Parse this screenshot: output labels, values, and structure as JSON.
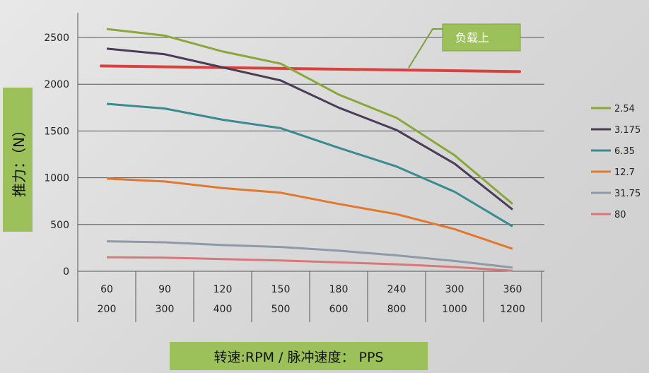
{
  "chart_data": {
    "type": "line",
    "title": "",
    "ylabel": "推力：（N）",
    "xlabel": "转速:RPM / 脉冲速度： PPS",
    "ylim": [
      0,
      2700
    ],
    "yticks": [
      0,
      500,
      1000,
      1500,
      2000,
      2500
    ],
    "categories": [
      "60",
      "90",
      "120",
      "150",
      "180",
      "240",
      "300",
      "360"
    ],
    "categories_secondary": [
      "200",
      "300",
      "400",
      "500",
      "600",
      "800",
      "1000",
      "1200"
    ],
    "grid": true,
    "legend_position": "right",
    "series": [
      {
        "name": "2.54",
        "color": "#8aa83a",
        "values": [
          2590,
          2520,
          2350,
          2220,
          1890,
          1640,
          1240,
          720
        ]
      },
      {
        "name": "3.175",
        "color": "#4a3b56",
        "values": [
          2380,
          2320,
          2180,
          2040,
          1750,
          1510,
          1150,
          660
        ]
      },
      {
        "name": "6.35",
        "color": "#3a8a92",
        "values": [
          1790,
          1740,
          1620,
          1530,
          1320,
          1120,
          850,
          480
        ]
      },
      {
        "name": "12.7",
        "color": "#e2782e",
        "values": [
          990,
          960,
          890,
          840,
          720,
          610,
          450,
          240
        ]
      },
      {
        "name": "31.75",
        "color": "#8e9aa8",
        "values": [
          320,
          310,
          280,
          260,
          220,
          170,
          110,
          40
        ]
      },
      {
        "name": "80",
        "color": "#d9787a",
        "values": [
          150,
          145,
          130,
          115,
          95,
          75,
          45,
          5
        ]
      }
    ],
    "reference_line": {
      "value": 2180,
      "color": "#d9413f"
    },
    "annotation": {
      "text": "负载上",
      "color": "#9cc15a"
    }
  }
}
